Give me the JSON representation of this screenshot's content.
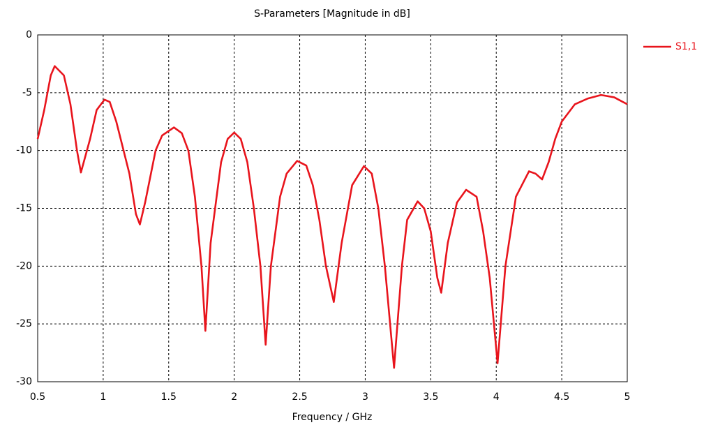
{
  "chart_data": {
    "type": "line",
    "title": "S-Parameters [Magnitude in dB]",
    "x_label": "Frequency / GHz",
    "x": [
      0.5,
      0.55,
      0.6,
      0.63,
      0.7,
      0.75,
      0.8,
      0.83,
      0.9,
      0.95,
      1.01,
      1.05,
      1.1,
      1.2,
      1.25,
      1.28,
      1.32,
      1.4,
      1.45,
      1.54,
      1.6,
      1.65,
      1.7,
      1.75,
      1.78,
      1.82,
      1.9,
      1.95,
      2.0,
      2.05,
      2.1,
      2.15,
      2.2,
      2.24,
      2.28,
      2.35,
      2.4,
      2.48,
      2.55,
      2.6,
      2.65,
      2.7,
      2.76,
      2.82,
      2.9,
      2.99,
      3.05,
      3.1,
      3.15,
      3.22,
      3.28,
      3.32,
      3.4,
      3.45,
      3.5,
      3.55,
      3.58,
      3.63,
      3.7,
      3.77,
      3.85,
      3.9,
      3.95,
      4.01,
      4.07,
      4.15,
      4.25,
      4.3,
      4.35,
      4.4,
      4.45,
      4.5,
      4.6,
      4.7,
      4.8,
      4.9,
      5.0
    ],
    "series": [
      {
        "name": "S1,1",
        "color": "#e8141c",
        "values": [
          -9,
          -6.5,
          -3.5,
          -2.7,
          -3.5,
          -6,
          -10,
          -11.9,
          -9,
          -6.5,
          -5.6,
          -5.8,
          -7.5,
          -12,
          -15.5,
          -16.4,
          -14.5,
          -10,
          -8.7,
          -8.0,
          -8.5,
          -10,
          -14,
          -20,
          -25.6,
          -18,
          -11,
          -9,
          -8.45,
          -9,
          -11,
          -15,
          -20,
          -26.8,
          -20,
          -14,
          -12,
          -10.9,
          -11.3,
          -13,
          -16,
          -20,
          -23.1,
          -18,
          -13,
          -11.35,
          -12,
          -15,
          -20,
          -28.8,
          -20,
          -16,
          -14.4,
          -15,
          -17,
          -21,
          -22.3,
          -18,
          -14.5,
          -13.4,
          -14,
          -17,
          -21,
          -28.4,
          -20,
          -14,
          -11.8,
          -12,
          -12.5,
          -11,
          -9,
          -7.5,
          -6,
          -5.5,
          -5.2,
          -5.4,
          -6
        ]
      }
    ],
    "xlim": [
      0.5,
      5
    ],
    "xticks": [
      0.5,
      1,
      1.5,
      2,
      2.5,
      3,
      3.5,
      4,
      4.5,
      5
    ],
    "ylim": [
      -30,
      0
    ],
    "yticks": [
      0,
      -5,
      -10,
      -15,
      -20,
      -25,
      -30
    ],
    "grid": true,
    "legend": "right"
  }
}
